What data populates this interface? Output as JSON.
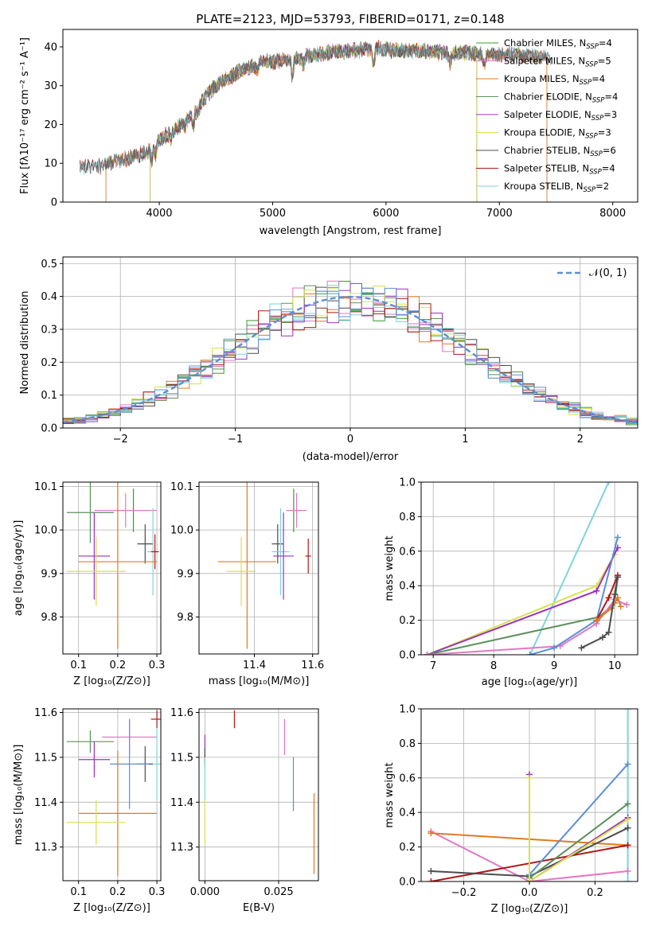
{
  "figure": {
    "title": "PLATE=2123, MJD=53793, FIBERID=0171, z=0.148"
  },
  "colors": {
    "Chabrier MILES": "#2ca02c",
    "Salpeter MILES": "#e377c2",
    "Kroupa MILES": "#e07b1f",
    "Chabrier ELODIE": "#5b8f5b",
    "Salpeter ELODIE": "#9b30c0",
    "Kroupa ELODIE": "#d8e24a",
    "Chabrier STELIB": "#4d4d4d",
    "Salpeter STELIB": "#b01818",
    "Kroupa STELIB": "#7fd3de",
    "gaussian": "#5b8fd6",
    "blue_model": "#5b8fd6"
  },
  "chart_data": [
    {
      "id": "spectrum",
      "type": "line",
      "title": "PLATE=2123, MJD=53793, FIBERID=0171, z=0.148",
      "xlabel": "wavelength [Angstrom, rest frame]",
      "ylabel": "Flux [fλ10⁻¹⁷ erg cm⁻² s⁻¹ A⁻¹]",
      "xlim": [
        3150,
        8220
      ],
      "ylim": [
        0,
        44.5
      ],
      "xticks": [
        4000,
        5000,
        6000,
        7000,
        8000
      ],
      "yticks": [
        0,
        10,
        20,
        30,
        40
      ],
      "legend": "top-right",
      "continuum": {
        "x": [
          3300,
          3500,
          3700,
          3900,
          4000,
          4100,
          4200,
          4300,
          4400,
          4500,
          4700,
          4900,
          5100,
          5300,
          5500,
          5700,
          5900,
          6100,
          6300,
          6500,
          6700,
          6900,
          7100,
          7300,
          7450
        ],
        "y": [
          9,
          9.5,
          11,
          13,
          16,
          18,
          20,
          23,
          27,
          30,
          33.5,
          36,
          36.5,
          37.5,
          38.5,
          39,
          39.5,
          39,
          39,
          38.5,
          38.5,
          38,
          38,
          37.5,
          37
        ]
      },
      "series": [
        {
          "name": "Chabrier MILES, N_SSP=4",
          "label": "Chabrier MILES, N",
          "sub": "SSP",
          "suffix": "=4",
          "xmin": 3530,
          "xmax": 7420
        },
        {
          "name": "Salpeter MILES, N_SSP=5",
          "label": "Salpeter MILES, N",
          "sub": "SSP",
          "suffix": "=5",
          "xmin": 3530,
          "xmax": 7420
        },
        {
          "name": "Kroupa MILES, N_SSP=4",
          "label": "Kroupa MILES, N",
          "sub": "SSP",
          "suffix": "=4",
          "xmin": 3530,
          "xmax": 7420
        },
        {
          "name": "Chabrier ELODIE, N_SSP=4",
          "label": "Chabrier ELODIE, N",
          "sub": "SSP",
          "suffix": "=4",
          "xmin": 3920,
          "xmax": 6800
        },
        {
          "name": "Salpeter ELODIE, N_SSP=3",
          "label": "Salpeter ELODIE, N",
          "sub": "SSP",
          "suffix": "=3",
          "xmin": 3920,
          "xmax": 6800
        },
        {
          "name": "Kroupa ELODIE, N_SSP=3",
          "label": "Kroupa ELODIE, N",
          "sub": "SSP",
          "suffix": "=3",
          "xmin": 3920,
          "xmax": 6800
        },
        {
          "name": "Chabrier STELIB, N_SSP=6",
          "label": "Chabrier STELIB, N",
          "sub": "SSP",
          "suffix": "=6",
          "xmin": 3300,
          "xmax": 8000
        },
        {
          "name": "Salpeter STELIB, N_SSP=4",
          "label": "Salpeter STELIB, N",
          "sub": "SSP",
          "suffix": "=4",
          "xmin": 3300,
          "xmax": 8000
        },
        {
          "name": "Kroupa STELIB, N_SSP=2",
          "label": "Kroupa STELIB, N",
          "sub": "SSP",
          "suffix": "=2",
          "xmin": 3300,
          "xmax": 8000
        }
      ]
    },
    {
      "id": "residuals",
      "type": "line",
      "xlabel": "(data-model)/error",
      "ylabel": "Normed distribution",
      "xlim": [
        -2.5,
        2.5
      ],
      "ylim": [
        0,
        0.52
      ],
      "xticks": [
        -2,
        -1,
        0,
        1,
        2
      ],
      "yticks": [
        0.0,
        0.1,
        0.2,
        0.3,
        0.4,
        0.5
      ],
      "grid": true,
      "legend": "top-right",
      "gaussian_label": "𝒩(0, 1)",
      "bin_width": 0.1
    },
    {
      "id": "age-vs-Z",
      "type": "scatter",
      "xlabel": "Z [log₁₀(Z/Z⊙)]",
      "ylabel": "age  [log₁₀(age/yr)]",
      "xlim": [
        0.06,
        0.31
      ],
      "ylim": [
        9.715,
        10.11
      ],
      "xticks": [
        0.1,
        0.2,
        0.3
      ],
      "yticks": [
        9.8,
        9.9,
        10.0,
        10.1
      ],
      "grid": true,
      "points": [
        {
          "model": "Chabrier MILES",
          "x": 0.24,
          "xe": 0.04,
          "y": 10.045,
          "ye": 0.05
        },
        {
          "model": "Salpeter MILES",
          "x": 0.22,
          "xe": 0.08,
          "y": 10.045,
          "ye": 0.04
        },
        {
          "model": "Chabrier STELIB",
          "x": 0.27,
          "xe": 0.02,
          "y": 9.968,
          "ye": 0.045
        },
        {
          "model": "Kroupa STELIB",
          "x": 0.29,
          "xe": 0.015,
          "y": 9.95,
          "ye": 0.1
        },
        {
          "model": "Salpeter STELIB",
          "x": 0.295,
          "xe": 0.01,
          "y": 9.95,
          "ye": 0.04
        },
        {
          "model": "Chabrier ELODIE",
          "x": 0.13,
          "xe": 0.06,
          "y": 10.04,
          "ye": 0.07
        },
        {
          "model": "Salpeter ELODIE",
          "x": 0.14,
          "xe": 0.04,
          "y": 9.94,
          "ye": 0.1
        },
        {
          "model": "Kroupa MILES",
          "x": 0.2,
          "xe": 0.1,
          "y": 9.927,
          "ye": 0.2
        },
        {
          "model": "Kroupa ELODIE",
          "x": 0.145,
          "xe": 0.075,
          "y": 9.905,
          "ye": 0.08
        }
      ]
    },
    {
      "id": "age-vs-mass",
      "type": "scatter",
      "xlabel": "mass [log₁₀(M/M⊙)]",
      "xlim": [
        11.21,
        11.62
      ],
      "ylim": [
        9.715,
        10.11
      ],
      "xticks": [
        11.4,
        11.6
      ],
      "yticks": [
        9.8,
        9.9,
        10.0,
        10.1
      ],
      "grid": true,
      "points": [
        {
          "model": "Chabrier MILES",
          "x": 11.535,
          "xe": 0.025,
          "y": 10.045,
          "ye": 0.05
        },
        {
          "model": "Salpeter MILES",
          "x": 11.545,
          "xe": 0.035,
          "y": 10.045,
          "ye": 0.04
        },
        {
          "model": "Chabrier STELIB",
          "x": 11.48,
          "xe": 0.02,
          "y": 9.968,
          "ye": 0.045
        },
        {
          "model": "Kroupa STELIB",
          "x": 11.49,
          "xe": 0.03,
          "y": 9.95,
          "ye": 0.1
        },
        {
          "model": "Salpeter STELIB",
          "x": 11.585,
          "xe": 0.01,
          "y": 9.94,
          "ye": 0.04
        },
        {
          "model": "Salpeter ELODIE",
          "x": 11.5,
          "xe": 0.035,
          "y": 9.94,
          "ye": 0.1
        },
        {
          "model": "Kroupa MILES",
          "x": 11.375,
          "xe": 0.1,
          "y": 9.927,
          "ye": 0.2
        },
        {
          "model": "Kroupa ELODIE",
          "x": 11.355,
          "xe": 0.05,
          "y": 9.905,
          "ye": 0.08
        }
      ]
    },
    {
      "id": "mass-weight-vs-age",
      "type": "line",
      "xlabel": "age  [log₁₀(age/yr)]",
      "ylabel": "mass weight",
      "xlim": [
        6.8,
        10.38
      ],
      "ylim": [
        0,
        1.0
      ],
      "xticks": [
        7,
        8,
        9,
        10
      ],
      "yticks": [
        0.0,
        0.2,
        0.4,
        0.6,
        0.8,
        1.0
      ],
      "grid": true,
      "series": [
        {
          "model": "Kroupa STELIB",
          "points": [
            [
              8.6,
              0.0
            ],
            [
              9.9,
              1.0
            ]
          ]
        },
        {
          "model": "Kroupa ELODIE",
          "points": [
            [
              6.9,
              0.0
            ],
            [
              9.7,
              0.4
            ],
            [
              10.0,
              0.58
            ]
          ]
        },
        {
          "model": "Salpeter ELODIE",
          "points": [
            [
              6.9,
              0.0
            ],
            [
              9.7,
              0.37
            ],
            [
              10.05,
              0.62
            ]
          ]
        },
        {
          "model": "Chabrier ELODIE",
          "points": [
            [
              6.9,
              0.0
            ],
            [
              9.75,
              0.22
            ],
            [
              10.0,
              0.3
            ],
            [
              10.05,
              0.45
            ]
          ]
        },
        {
          "model": "Salpeter MILES",
          "points": [
            [
              6.9,
              0.0
            ],
            [
              9.1,
              0.05
            ],
            [
              9.7,
              0.18
            ],
            [
              10.0,
              0.32
            ],
            [
              10.2,
              0.29
            ]
          ]
        },
        {
          "model": "blue_model",
          "points": [
            [
              8.6,
              0.0
            ],
            [
              9.0,
              0.04
            ],
            [
              9.7,
              0.2
            ],
            [
              10.05,
              0.68
            ]
          ]
        },
        {
          "model": "Salpeter STELIB",
          "points": [
            [
              9.7,
              0.2
            ],
            [
              9.9,
              0.33
            ],
            [
              10.05,
              0.46
            ]
          ]
        },
        {
          "model": "Kroupa MILES",
          "points": [
            [
              9.7,
              0.2
            ],
            [
              9.95,
              0.27
            ],
            [
              10.05,
              0.33
            ],
            [
              10.1,
              0.28
            ]
          ]
        },
        {
          "model": "Chabrier STELIB",
          "points": [
            [
              9.45,
              0.04
            ],
            [
              9.8,
              0.1
            ],
            [
              9.9,
              0.13
            ],
            [
              10.0,
              0.35
            ],
            [
              10.05,
              0.45
            ]
          ]
        }
      ]
    },
    {
      "id": "mass-vs-Z",
      "type": "scatter",
      "xlabel": "Z [log₁₀(Z/Z⊙)]",
      "ylabel": "mass [log₁₀(M/M⊙)]",
      "xlim": [
        0.06,
        0.31
      ],
      "ylim": [
        11.225,
        11.608
      ],
      "xticks": [
        0.1,
        0.2,
        0.3
      ],
      "yticks": [
        11.3,
        11.4,
        11.5,
        11.6
      ],
      "grid": true,
      "points": [
        {
          "model": "Salpeter STELIB",
          "x": 0.3,
          "xe": 0.015,
          "y": 11.585,
          "ye": 0.02
        },
        {
          "model": "Salpeter MILES",
          "x": 0.23,
          "xe": 0.07,
          "y": 11.545,
          "ye": 0.04
        },
        {
          "model": "Chabrier ELODIE",
          "x": 0.13,
          "xe": 0.06,
          "y": 11.535,
          "ye": 0.025
        },
        {
          "model": "Salpeter ELODIE",
          "x": 0.14,
          "xe": 0.04,
          "y": 11.495,
          "ye": 0.04
        },
        {
          "model": "Chabrier STELIB",
          "x": 0.27,
          "xe": 0.02,
          "y": 11.485,
          "ye": 0.04
        },
        {
          "model": "blue_model",
          "x": 0.23,
          "xe": 0.05,
          "y": 11.485,
          "ye": 0.1
        },
        {
          "model": "Kroupa STELIB",
          "x": 0.3,
          "xe": 0.01,
          "y": 11.485,
          "ye": 0.08
        },
        {
          "model": "Kroupa MILES",
          "x": 0.2,
          "xe": 0.1,
          "y": 11.375,
          "ye": 0.14
        },
        {
          "model": "Kroupa ELODIE",
          "x": 0.145,
          "xe": 0.075,
          "y": 11.355,
          "ye": 0.05
        }
      ]
    },
    {
      "id": "mass-vs-EBV",
      "type": "scatter",
      "xlabel": "E(B-V)",
      "xlim": [
        -0.002,
        0.0385
      ],
      "ylim": [
        11.225,
        11.608
      ],
      "xticks": [
        0.0,
        0.025
      ],
      "xticklabels": [
        "0.000",
        "0.025"
      ],
      "yticks": [
        11.3,
        11.4,
        11.5,
        11.6
      ],
      "grid": true,
      "points": [
        {
          "model": "Salpeter STELIB",
          "x": 0.01,
          "y": 11.585,
          "ye": 0.02
        },
        {
          "model": "Salpeter MILES",
          "x": 0.027,
          "y": 11.545,
          "ye": 0.04
        },
        {
          "model": "Salpeter ELODIE",
          "x": 0.0,
          "y": 11.52,
          "ye": 0.03
        },
        {
          "model": "Chabrier STELIB",
          "x": 0.0,
          "y": 11.5,
          "ye": 0.02
        },
        {
          "model": "blue_model",
          "x": 0.03,
          "y": 11.44,
          "ye": 0.06
        },
        {
          "model": "Kroupa STELIB",
          "x": 0.0,
          "y": 11.45,
          "ye": 0.05
        },
        {
          "model": "Kroupa ELODIE",
          "x": 0.0,
          "y": 11.355,
          "ye": 0.05
        },
        {
          "model": "Kroupa MILES",
          "x": 0.037,
          "y": 11.33,
          "ye": 0.09
        }
      ]
    },
    {
      "id": "mass-weight-vs-Z",
      "type": "line",
      "xlabel": "Z [log₁₀(Z/Z⊙)]",
      "ylabel": "mass weight",
      "xlim": [
        -0.33,
        0.33
      ],
      "ylim": [
        0,
        1.0
      ],
      "xticks": [
        -0.2,
        0.0,
        0.2
      ],
      "xticklabels": [
        "−0.2",
        "0.0",
        "0.2"
      ],
      "yticks": [
        0.0,
        0.2,
        0.4,
        0.6,
        0.8,
        1.0
      ],
      "grid": true,
      "series": [
        {
          "model": "Kroupa STELIB",
          "points": [
            [
              0.3,
              0.0
            ],
            [
              0.3,
              1.0
            ]
          ]
        },
        {
          "model": "Salpeter MILES",
          "points": [
            [
              -0.3,
              0.29
            ],
            [
              0.0,
              0.0
            ],
            [
              0.3,
              0.06
            ]
          ]
        },
        {
          "model": "Kroupa MILES",
          "points": [
            [
              -0.3,
              0.28
            ],
            [
              0.3,
              0.21
            ]
          ]
        },
        {
          "model": "Salpeter STELIB",
          "points": [
            [
              -0.3,
              0.0
            ],
            [
              0.3,
              0.21
            ]
          ]
        },
        {
          "model": "Chabrier STELIB",
          "points": [
            [
              -0.3,
              0.06
            ],
            [
              0.0,
              0.03
            ],
            [
              0.3,
              0.31
            ]
          ]
        },
        {
          "model": "blue_model",
          "points": [
            [
              0.0,
              0.04
            ],
            [
              0.3,
              0.68
            ]
          ]
        },
        {
          "model": "Chabrier ELODIE",
          "points": [
            [
              0.0,
              0.02
            ],
            [
              0.3,
              0.45
            ]
          ]
        },
        {
          "model": "Salpeter ELODIE",
          "points": [
            [
              0.0,
              0.62
            ],
            [
              0.0,
              0.0
            ],
            [
              0.3,
              0.37
            ]
          ]
        },
        {
          "model": "Kroupa ELODIE",
          "points": [
            [
              0.0,
              0.6
            ],
            [
              0.0,
              0.0
            ],
            [
              0.3,
              0.36
            ]
          ]
        }
      ]
    }
  ]
}
